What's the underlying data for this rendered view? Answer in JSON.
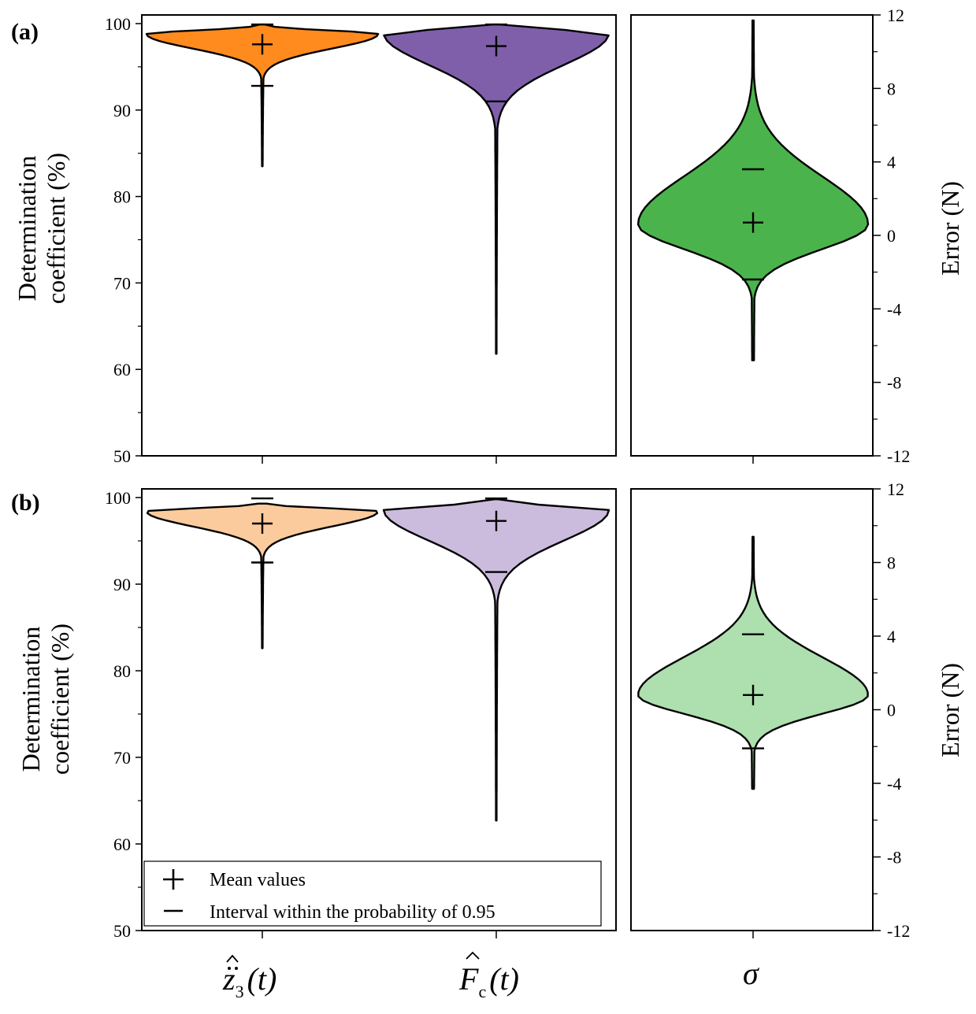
{
  "figure": {
    "panels": [
      {
        "label": "(a)",
        "left_axis": {
          "title_line1": "Determination",
          "title_line2": "coefficient (%)",
          "range": [
            50,
            101
          ],
          "ticks": [
            "50",
            "60",
            "70",
            "80",
            "90",
            "100"
          ]
        },
        "right_axis": {
          "title": "Error (N)",
          "range": [
            -12,
            12
          ],
          "ticks": [
            "-12",
            "-8",
            "-4",
            "0",
            "4",
            "8",
            "12"
          ]
        }
      },
      {
        "label": "(b)",
        "left_axis": {
          "title_line1": "Determination",
          "title_line2": "coefficient (%)",
          "range": [
            50,
            101
          ],
          "ticks": [
            "50",
            "60",
            "70",
            "80",
            "90",
            "100"
          ]
        },
        "right_axis": {
          "title": "Error (N)",
          "range": [
            -12,
            12
          ],
          "ticks": [
            "-12",
            "-8",
            "-4",
            "0",
            "4",
            "8",
            "12"
          ]
        }
      }
    ],
    "legend": {
      "mean_label": "Mean values",
      "interval_label": "Interval within the probability of 0.95"
    },
    "categories": {
      "z3": {
        "base": "z",
        "sub": "3",
        "arg": "(t)"
      },
      "fc": {
        "base": "F",
        "sub": "c",
        "arg": "(t)"
      },
      "sigma": {
        "symbol": "σ"
      }
    }
  },
  "chart_data": [
    {
      "type": "violin",
      "title": "(a)",
      "ylabel": "Determination coefficient (%)",
      "ylim": [
        50,
        101
      ],
      "y2label": "Error (N)",
      "y2lim": [
        -12,
        12
      ],
      "series": [
        {
          "name": "z3 double-dot hat (t)",
          "axis": "left",
          "color": "#FF8A1E",
          "mean": 97.6,
          "interval": [
            92.8,
            99.9
          ],
          "min": 83.5,
          "max": 99.9,
          "mode": 98.8
        },
        {
          "name": "Fc hat (t)",
          "axis": "left",
          "color": "#7F5FAA",
          "mean": 97.4,
          "interval": [
            91.0,
            99.9
          ],
          "min": 61.8,
          "max": 99.9,
          "mode": 98.9
        },
        {
          "name": "sigma",
          "axis": "right",
          "color": "#4BB34B",
          "mean": 0.7,
          "interval": [
            -2.4,
            3.6
          ],
          "min": -6.8,
          "max": 11.7,
          "mode": 0.6
        }
      ]
    },
    {
      "type": "violin",
      "title": "(b)",
      "ylabel": "Determination coefficient (%)",
      "ylim": [
        50,
        101
      ],
      "y2label": "Error (N)",
      "y2lim": [
        -12,
        12
      ],
      "series": [
        {
          "name": "z3 double-dot hat (t)",
          "axis": "left",
          "color": "#FBCB9D",
          "mean": 97.0,
          "interval": [
            92.5,
            99.9
          ],
          "min": 82.6,
          "max": 99.3,
          "mode": 98.4
        },
        {
          "name": "Fc hat (t)",
          "axis": "left",
          "color": "#CBBCDE",
          "mean": 97.3,
          "interval": [
            91.4,
            99.9
          ],
          "min": 62.7,
          "max": 99.8,
          "mode": 98.6
        },
        {
          "name": "sigma",
          "axis": "right",
          "color": "#AEDFAE",
          "mean": 0.8,
          "interval": [
            -2.1,
            4.1
          ],
          "min": -4.3,
          "max": 9.4,
          "mode": 0.8
        }
      ]
    }
  ]
}
